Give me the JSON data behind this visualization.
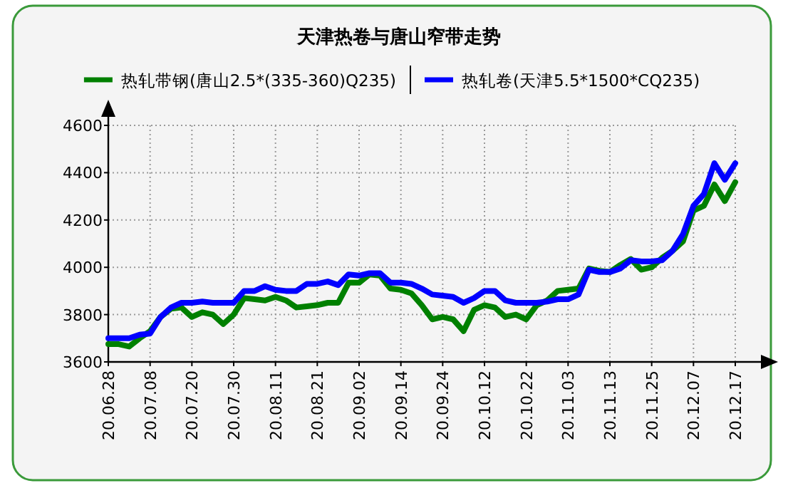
{
  "chart_data": {
    "type": "line",
    "title": "天津热卷与唐山窄带走势",
    "categories": [
      "20.06.28",
      null,
      null,
      null,
      "20.07.08",
      null,
      null,
      null,
      "20.07.20",
      null,
      null,
      null,
      "20.07.30",
      null,
      null,
      null,
      "20.08.11",
      null,
      null,
      null,
      "20.08.21",
      null,
      null,
      null,
      "20.09.02",
      null,
      null,
      null,
      "20.09.14",
      null,
      null,
      null,
      "20.09.24",
      null,
      null,
      null,
      "20.10.12",
      null,
      null,
      null,
      "20.10.22",
      null,
      null,
      null,
      "20.11.03",
      null,
      null,
      null,
      "20.11.13",
      null,
      null,
      null,
      "20.11.25",
      null,
      null,
      null,
      "20.12.07",
      null,
      null,
      null,
      "20.12.17"
    ],
    "series": [
      {
        "name": "热轧带钢(唐山2.5*(335-360)Q235)",
        "color": "#008000",
        "values": [
          3675,
          3675,
          3665,
          3700,
          3730,
          3790,
          3825,
          3830,
          3790,
          3810,
          3800,
          3760,
          3800,
          3870,
          3865,
          3860,
          3875,
          3860,
          3830,
          3835,
          3840,
          3850,
          3850,
          3935,
          3935,
          3970,
          3965,
          3910,
          3905,
          3890,
          3840,
          3780,
          3790,
          3780,
          3730,
          3820,
          3840,
          3830,
          3790,
          3800,
          3780,
          3840,
          3860,
          3900,
          3905,
          3910,
          3995,
          3985,
          3980,
          4010,
          4035,
          3990,
          4000,
          4040,
          4070,
          4110,
          4240,
          4260,
          4350,
          4280,
          4360
        ]
      },
      {
        "name": "热轧卷(天津5.5*1500*CQ235)",
        "color": "#0000ff",
        "values": [
          3700,
          3700,
          3700,
          3715,
          3720,
          3790,
          3830,
          3850,
          3850,
          3855,
          3850,
          3850,
          3850,
          3900,
          3900,
          3920,
          3905,
          3900,
          3900,
          3930,
          3930,
          3940,
          3925,
          3970,
          3965,
          3975,
          3975,
          3935,
          3935,
          3930,
          3910,
          3885,
          3880,
          3875,
          3850,
          3870,
          3900,
          3900,
          3860,
          3850,
          3850,
          3850,
          3855,
          3865,
          3865,
          3885,
          3990,
          3980,
          3980,
          3995,
          4030,
          4025,
          4025,
          4030,
          4070,
          4140,
          4260,
          4310,
          4440,
          4370,
          4440
        ]
      }
    ],
    "ylim": [
      3600,
      4600
    ],
    "yticks": [
      3600,
      3800,
      4000,
      4200,
      4400,
      4600
    ],
    "grid": true,
    "legend": "top",
    "marker": "none",
    "line_style": "solid"
  }
}
